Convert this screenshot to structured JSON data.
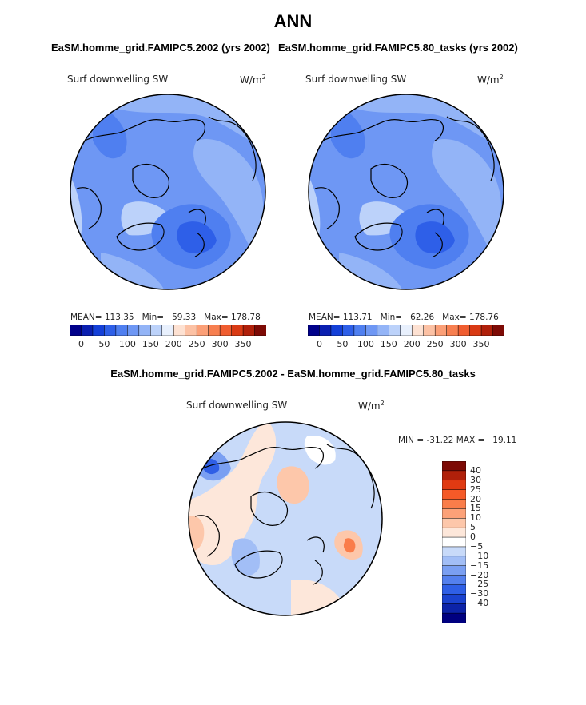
{
  "figure": {
    "title": "ANN"
  },
  "panels": [
    {
      "title": "EaSM.homme_grid.FAMIPC5.2002 (yrs 2002)",
      "variable": "Surf downwelling SW",
      "units_base": "W/m",
      "units_exp": "2",
      "stats": {
        "mean_label": "MEAN=",
        "mean": "113.35",
        "min_label": "Min=",
        "min": "59.33",
        "max_label": "Max=",
        "max": "178.78"
      }
    },
    {
      "title": "EaSM.homme_grid.FAMIPC5.80_tasks (yrs 2002)",
      "variable": "Surf downwelling SW",
      "units_base": "W/m",
      "units_exp": "2",
      "stats": {
        "mean_label": "MEAN=",
        "mean": "113.71",
        "min_label": "Min=",
        "min": "62.26",
        "max_label": "Max=",
        "max": "178.76"
      }
    },
    {
      "title": "EaSM.homme_grid.FAMIPC5.2002 - EaSM.homme_grid.FAMIPC5.80_tasks",
      "variable": "Surf downwelling SW",
      "units_base": "W/m",
      "units_exp": "2",
      "stats": {
        "min_label": "MIN =",
        "min": "-31.22",
        "max_label": "MAX =",
        "max": "19.11"
      }
    }
  ],
  "colorbars": {
    "absolute": {
      "colors": [
        "#00008a",
        "#0a1fb0",
        "#1440d8",
        "#2e5fe8",
        "#4f7ff0",
        "#6e97f4",
        "#93b4f7",
        "#bcd2fa",
        "#e8f0fd",
        "#fde1d2",
        "#fcc1a4",
        "#fb9f77",
        "#f77f50",
        "#f05d30",
        "#d93a14",
        "#b0200a",
        "#7d0a05"
      ],
      "tick_labels": [
        "0",
        "50",
        "100",
        "150",
        "200",
        "250",
        "300",
        "350"
      ]
    },
    "difference": {
      "colors": [
        "#7d0a05",
        "#b0200a",
        "#e03a12",
        "#f55a28",
        "#fa7d4a",
        "#fca178",
        "#fdc7aa",
        "#fde7da",
        "#ffffff",
        "#c8daf9",
        "#a2bef6",
        "#7a9ff2",
        "#5480ee",
        "#2f5fe6",
        "#1a42cf",
        "#0c23a8",
        "#000080"
      ],
      "labels": [
        "40",
        "30",
        "25",
        "20",
        "15",
        "10",
        "5",
        "0",
        "−5",
        "−10",
        "−15",
        "−20",
        "−25",
        "−30",
        "−40"
      ]
    }
  },
  "chart_data": [
    {
      "type": "heatmap",
      "title": "EaSM.homme_grid.FAMIPC5.2002 (yrs 2002)",
      "projection": "north polar stereographic",
      "variable": "Surf downwelling SW",
      "units": "W/m^2",
      "mean": 113.35,
      "min": 59.33,
      "max": 178.78,
      "levels": [
        0,
        50,
        100,
        150,
        200,
        250,
        300,
        350
      ]
    },
    {
      "type": "heatmap",
      "title": "EaSM.homme_grid.FAMIPC5.80_tasks (yrs 2002)",
      "projection": "north polar stereographic",
      "variable": "Surf downwelling SW",
      "units": "W/m^2",
      "mean": 113.71,
      "min": 62.26,
      "max": 178.76,
      "levels": [
        0,
        50,
        100,
        150,
        200,
        250,
        300,
        350
      ]
    },
    {
      "type": "heatmap",
      "title": "EaSM.homme_grid.FAMIPC5.2002 - EaSM.homme_grid.FAMIPC5.80_tasks",
      "projection": "north polar stereographic",
      "variable": "Surf downwelling SW",
      "units": "W/m^2",
      "min": -31.22,
      "max": 19.11,
      "levels": [
        -40,
        -30,
        -25,
        -20,
        -15,
        -10,
        -5,
        0,
        5,
        10,
        15,
        20,
        25,
        30,
        40
      ]
    }
  ]
}
